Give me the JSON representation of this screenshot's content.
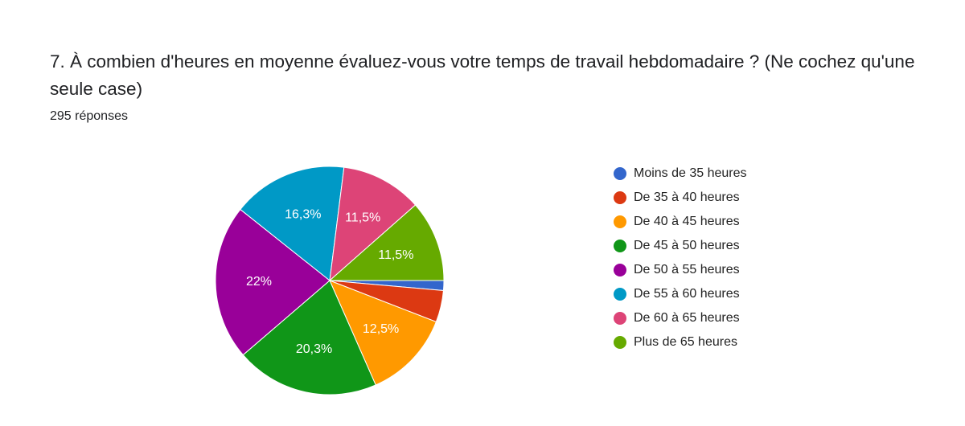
{
  "chart_data": {
    "type": "pie",
    "title": "7. À combien d'heures en moyenne évaluez-vous votre temps de travail hebdomadaire ? (Ne cochez qu'une seule case)",
    "subtitle": "295 réponses",
    "categories": [
      "Moins de 35 heures",
      "De 35 à 40 heures",
      "De 40 à 45 heures",
      "De 45 à 50 heures",
      "De 50 à 55 heures",
      "De 55 à 60 heures",
      "De 60 à 65 heures",
      "Plus de 65 heures"
    ],
    "values": [
      1.4,
      4.5,
      12.5,
      20.3,
      22,
      16.3,
      11.5,
      11.5
    ],
    "value_labels": [
      null,
      null,
      "12,5%",
      "20,3%",
      "22%",
      "16,3%",
      "11,5%",
      "11,5%"
    ],
    "colors": [
      "#3366cc",
      "#dc3912",
      "#ff9900",
      "#109618",
      "#990099",
      "#0099c6",
      "#dd4477",
      "#66aa00"
    ],
    "legend": "right"
  }
}
